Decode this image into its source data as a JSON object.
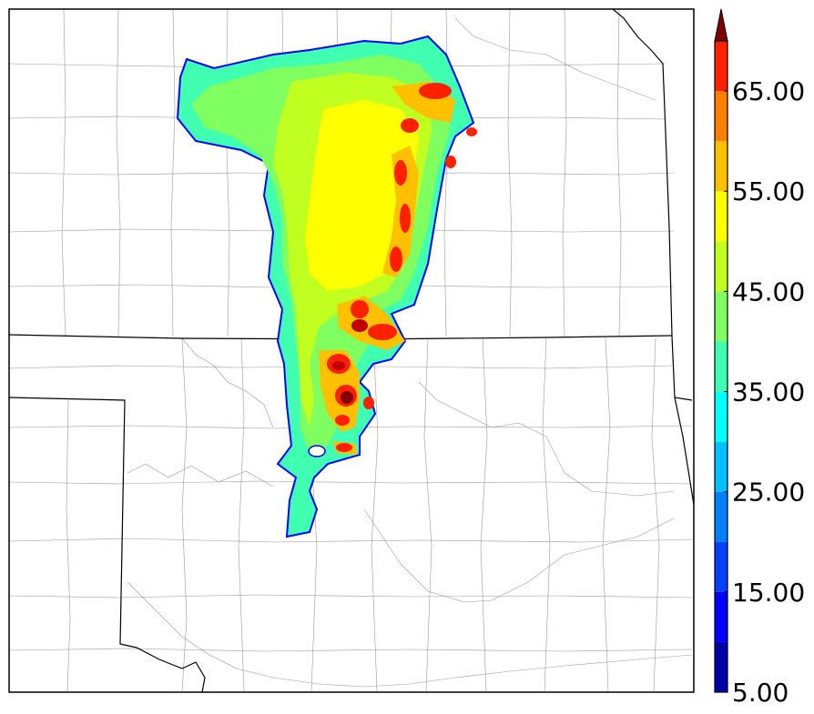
{
  "colorbar": {
    "ticks": [
      {
        "value": 5,
        "label": "5.00"
      },
      {
        "value": 15,
        "label": "15.00"
      },
      {
        "value": 25,
        "label": "25.00"
      },
      {
        "value": 35,
        "label": "35.00"
      },
      {
        "value": 45,
        "label": "45.00"
      },
      {
        "value": 55,
        "label": "55.00"
      },
      {
        "value": 65,
        "label": "65.00"
      }
    ],
    "levels": [
      5,
      10,
      15,
      20,
      25,
      30,
      35,
      40,
      45,
      50,
      55,
      60,
      65,
      70
    ],
    "colors": [
      "#0000aa",
      "#0000ff",
      "#0040ff",
      "#0080ff",
      "#00c0ff",
      "#00ffff",
      "#40ffb0",
      "#80ff60",
      "#c0ff20",
      "#ffff00",
      "#ffc000",
      "#ff8000",
      "#ff2000",
      "#c00000",
      "#800000"
    ],
    "extend": "max"
  },
  "map": {
    "colors": {
      "state_border": "#000000",
      "county_border": "#999999",
      "echo_edge": "#0000ff"
    }
  }
}
